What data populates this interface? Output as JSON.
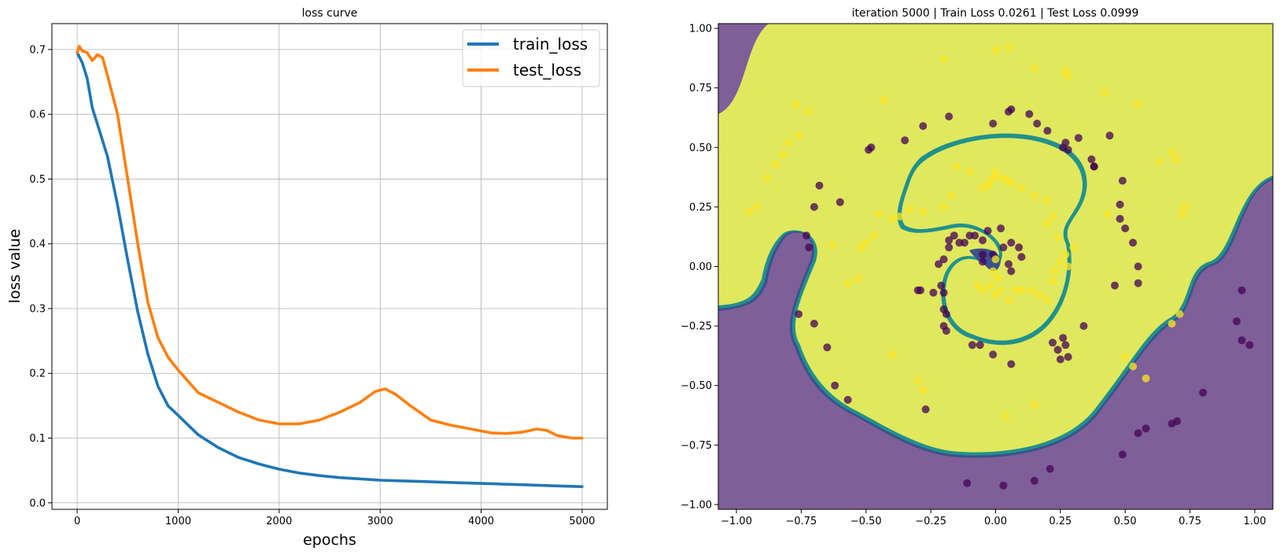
{
  "chart_data": [
    {
      "type": "line",
      "title": "loss curve",
      "xlabel": "epochs",
      "ylabel": "loss value",
      "xlim": [
        -250,
        5250
      ],
      "ylim": [
        -0.01,
        0.74
      ],
      "xticks": [
        0,
        1000,
        2000,
        3000,
        4000,
        5000
      ],
      "yticks": [
        0.0,
        0.1,
        0.2,
        0.3,
        0.4,
        0.5,
        0.6,
        0.7
      ],
      "grid": true,
      "legend": "top-right",
      "series": [
        {
          "name": "train_loss",
          "color": "#1f77b4",
          "x": [
            0,
            50,
            100,
            150,
            200,
            300,
            400,
            500,
            600,
            700,
            800,
            900,
            1000,
            1200,
            1400,
            1600,
            1800,
            2000,
            2200,
            2400,
            2600,
            2800,
            3000,
            3200,
            3400,
            3600,
            3800,
            4000,
            4200,
            4400,
            4600,
            4800,
            5000
          ],
          "y": [
            0.695,
            0.68,
            0.655,
            0.61,
            0.585,
            0.535,
            0.46,
            0.375,
            0.295,
            0.23,
            0.18,
            0.15,
            0.135,
            0.105,
            0.085,
            0.07,
            0.06,
            0.052,
            0.046,
            0.042,
            0.039,
            0.037,
            0.035,
            0.034,
            0.033,
            0.032,
            0.031,
            0.03,
            0.029,
            0.028,
            0.027,
            0.026,
            0.025
          ]
        },
        {
          "name": "test_loss",
          "color": "#ff7f0e",
          "x": [
            0,
            20,
            50,
            100,
            150,
            200,
            250,
            300,
            400,
            500,
            600,
            700,
            800,
            900,
            1000,
            1200,
            1400,
            1600,
            1800,
            2000,
            2200,
            2400,
            2600,
            2800,
            2950,
            3050,
            3150,
            3300,
            3500,
            3700,
            3900,
            4100,
            4250,
            4400,
            4550,
            4650,
            4750,
            4900,
            5000
          ],
          "y": [
            0.695,
            0.705,
            0.698,
            0.695,
            0.683,
            0.692,
            0.688,
            0.66,
            0.6,
            0.5,
            0.4,
            0.31,
            0.255,
            0.225,
            0.205,
            0.17,
            0.155,
            0.14,
            0.128,
            0.122,
            0.122,
            0.128,
            0.14,
            0.155,
            0.172,
            0.176,
            0.168,
            0.15,
            0.128,
            0.12,
            0.114,
            0.108,
            0.107,
            0.109,
            0.114,
            0.112,
            0.104,
            0.1,
            0.1
          ]
        }
      ]
    },
    {
      "type": "scatter",
      "title": "iteration 5000 | Train Loss 0.0261 | Test Loss 0.0999",
      "xlabel": "",
      "ylabel": "",
      "xlim": [
        -1.07,
        1.07
      ],
      "ylim": [
        -1.02,
        1.02
      ],
      "xticks": [
        -1.0,
        -0.75,
        -0.5,
        -0.25,
        0.0,
        0.25,
        0.5,
        0.75,
        1.0
      ],
      "yticks": [
        -1.0,
        -0.75,
        -0.5,
        -0.25,
        0.0,
        0.25,
        0.5,
        0.75,
        1.0
      ],
      "grid": false,
      "legend": "none",
      "background_color": "#7f5f98",
      "boundary_colors": [
        "#3b528b",
        "#21918c",
        "#5ec962",
        "#aadc32"
      ],
      "region_color": "#e0e85e",
      "series": [
        {
          "name": "",
          "color": "#440154",
          "x": [
            -0.01,
            0.03,
            0.06,
            0.09,
            0.1,
            -0.16,
            -0.14,
            -0.08,
            -0.05,
            -0.03,
            0.02,
            -0.18,
            -0.18,
            -0.12,
            -0.1,
            -0.05,
            -0.05,
            0.05,
            0.06,
            -0.22,
            -0.2,
            -0.2,
            -0.29,
            -0.24,
            -0.21,
            -0.19,
            -0.19,
            -0.09,
            -0.06,
            -0.01,
            0.06,
            0.22,
            0.24,
            0.26,
            0.27,
            0.25,
            0.28,
            0.34,
            0.46,
            0.48,
            0.48,
            0.49,
            0.5,
            0.53,
            0.55,
            0.55,
            -0.2,
            -0.3,
            -0.2,
            -0.27,
            -0.11,
            0.03,
            0.15,
            0.21,
            0.49,
            0.55,
            0.58,
            0.68,
            0.7,
            0.8,
            0.93,
            0.95,
            0.95,
            0.98,
            -0.76,
            -0.7,
            -0.65,
            -0.62,
            -0.57,
            -0.72,
            -0.73,
            -0.7,
            -0.68,
            -0.6,
            -0.49,
            -0.48,
            -0.35,
            -0.28,
            -0.18,
            -0.01,
            0.05,
            0.06,
            0.13,
            0.16,
            0.2,
            0.26,
            0.27,
            0.28,
            0.32,
            0.37,
            0.38,
            0.38,
            0.44
          ],
          "y": [
            0.05,
            0.08,
            0.1,
            0.08,
            0.04,
            0.13,
            0.1,
            0.13,
            0.11,
            0.15,
            0.16,
            0.08,
            0.11,
            0.1,
            0.13,
            0.05,
            0.02,
            0.01,
            -0.02,
            0.01,
            0.03,
            -0.11,
            -0.1,
            -0.11,
            -0.08,
            -0.2,
            -0.27,
            -0.33,
            -0.33,
            -0.37,
            -0.41,
            -0.32,
            -0.35,
            -0.3,
            -0.33,
            -0.39,
            -0.38,
            -0.25,
            -0.08,
            0.2,
            0.26,
            0.36,
            0.16,
            0.1,
            0.0,
            -0.07,
            -0.25,
            -0.1,
            -0.18,
            -0.6,
            -0.91,
            -0.92,
            -0.9,
            -0.85,
            -0.79,
            -0.7,
            -0.68,
            -0.66,
            -0.65,
            -0.53,
            -0.23,
            -0.31,
            -0.1,
            -0.33,
            -0.2,
            -0.24,
            -0.34,
            -0.5,
            -0.56,
            0.08,
            0.13,
            0.25,
            0.34,
            0.27,
            0.49,
            0.5,
            0.53,
            0.59,
            0.63,
            0.6,
            0.65,
            0.66,
            0.64,
            0.6,
            0.57,
            0.5,
            0.52,
            0.49,
            0.54,
            0.45,
            0.42,
            0.42,
            0.55
          ]
        },
        {
          "name": "",
          "color": "#fde725",
          "x": [
            0.0,
            -0.01,
            0.01,
            -0.02,
            0.0,
            0.05,
            0.08,
            -0.07,
            -0.05,
            0.02,
            0.1,
            0.14,
            0.17,
            0.2,
            0.22,
            0.23,
            0.25,
            0.27,
            0.28,
            0.3,
            0.24,
            0.2,
            -0.05,
            -0.02,
            0.0,
            0.03,
            0.06,
            0.1,
            0.15,
            0.2,
            0.22,
            -0.03,
            0.0,
            0.05,
            -0.15,
            -0.1,
            -0.17,
            -0.2,
            -0.28,
            -0.33,
            -0.37,
            -0.4,
            -0.45,
            -0.47,
            -0.5,
            -0.52,
            -0.53,
            -0.57,
            -0.63,
            -0.76,
            -0.8,
            -0.82,
            -0.85,
            -0.88,
            -0.92,
            -0.95,
            -0.72,
            -0.77,
            -0.43,
            -0.2,
            0.15,
            0.0,
            0.05,
            0.27,
            0.42,
            0.55,
            0.63,
            0.68,
            0.7,
            0.72,
            0.73,
            0.71,
            0.68,
            0.5,
            0.53,
            0.58,
            0.04,
            -0.28,
            -0.3,
            0.15,
            0.28,
            0.43,
            -0.4
          ],
          "y": [
            0.03,
            -0.02,
            -0.05,
            -0.08,
            -0.12,
            -0.14,
            -0.1,
            -0.08,
            -0.1,
            -0.1,
            -0.1,
            -0.1,
            -0.12,
            -0.14,
            -0.06,
            -0.02,
            0.02,
            0.05,
            0.0,
            0.08,
            0.12,
            0.18,
            0.33,
            0.36,
            0.4,
            0.37,
            0.35,
            0.33,
            0.3,
            0.28,
            0.21,
            0.34,
            0.38,
            0.36,
            0.42,
            0.4,
            0.3,
            0.25,
            0.23,
            0.24,
            0.21,
            0.2,
            0.22,
            0.13,
            0.1,
            0.08,
            -0.05,
            -0.07,
            0.09,
            0.55,
            0.52,
            0.47,
            0.43,
            0.37,
            0.25,
            0.23,
            0.65,
            0.68,
            0.7,
            0.87,
            0.83,
            0.91,
            0.92,
            0.82,
            0.73,
            0.68,
            0.44,
            0.48,
            0.45,
            0.22,
            0.25,
            -0.2,
            -0.24,
            -0.38,
            -0.42,
            -0.47,
            -0.63,
            -0.52,
            -0.48,
            -0.58,
            0.8,
            0.22,
            -0.37
          ]
        }
      ]
    }
  ]
}
